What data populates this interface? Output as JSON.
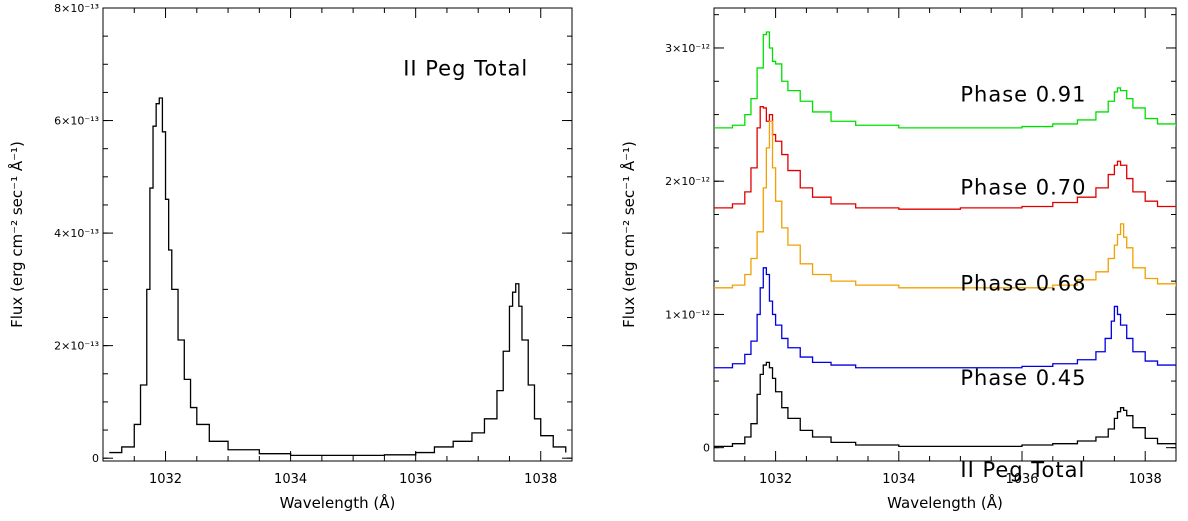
{
  "chart_data": [
    {
      "type": "line",
      "xlabel": "Wavelength (Å)",
      "ylabel": "Flux (erg cm⁻² sec⁻¹ Å⁻¹)",
      "xlim": [
        1031.0,
        1038.5
      ],
      "ylim": [
        -5e-15,
        8e-13
      ],
      "x_ticks": [
        {
          "value": 1032,
          "label": "1032"
        },
        {
          "value": 1034,
          "label": "1034"
        },
        {
          "value": 1036,
          "label": "1036"
        },
        {
          "value": 1038,
          "label": "1038"
        }
      ],
      "y_ticks": [
        {
          "value": 0,
          "label": "0"
        },
        {
          "value": 2e-13,
          "label": "2×10⁻¹³"
        },
        {
          "value": 4e-13,
          "label": "4×10⁻¹³"
        },
        {
          "value": 6e-13,
          "label": "6×10⁻¹³"
        },
        {
          "value": 8e-13,
          "label": "8×10⁻¹³"
        }
      ],
      "annotations": [
        {
          "text": "II Peg Total",
          "x": 1036.8,
          "y": 6.8e-13
        }
      ],
      "series": [
        {
          "color": "#000000",
          "x": [
            1031.1,
            1031.3,
            1031.5,
            1031.6,
            1031.7,
            1031.75,
            1031.8,
            1031.85,
            1031.9,
            1031.95,
            1032.0,
            1032.05,
            1032.1,
            1032.2,
            1032.3,
            1032.4,
            1032.5,
            1032.7,
            1033.0,
            1033.5,
            1034.0,
            1034.5,
            1035.0,
            1035.5,
            1036.0,
            1036.3,
            1036.6,
            1036.9,
            1037.1,
            1037.3,
            1037.4,
            1037.5,
            1037.55,
            1037.6,
            1037.65,
            1037.7,
            1037.8,
            1037.9,
            1038.0,
            1038.2,
            1038.4
          ],
          "y": [
            1e-14,
            2e-14,
            6e-14,
            1.3e-13,
            3e-13,
            4.8e-13,
            5.9e-13,
            6.3e-13,
            6.4e-13,
            5.8e-13,
            4.6e-13,
            3.7e-13,
            3e-13,
            2.1e-13,
            1.4e-13,
            9e-14,
            6e-14,
            3e-14,
            1.5e-14,
            8e-15,
            5e-15,
            5e-15,
            5e-15,
            6e-15,
            1e-14,
            2e-14,
            3e-14,
            4.5e-14,
            7e-14,
            1.2e-13,
            1.9e-13,
            2.7e-13,
            2.95e-13,
            3.1e-13,
            2.7e-13,
            2.1e-13,
            1.3e-13,
            7e-14,
            4e-14,
            2e-14,
            1e-14
          ]
        }
      ]
    },
    {
      "type": "line",
      "xlabel": "Wavelength (Å)",
      "ylabel": "Flux (erg cm⁻² sec⁻¹ Å⁻¹)",
      "xlim": [
        1031.0,
        1038.5
      ],
      "ylim": [
        -1e-13,
        3.3e-12
      ],
      "x_ticks": [
        {
          "value": 1032,
          "label": "1032"
        },
        {
          "value": 1034,
          "label": "1034"
        },
        {
          "value": 1036,
          "label": "1036"
        },
        {
          "value": 1038,
          "label": "1038"
        }
      ],
      "y_ticks": [
        {
          "value": 0,
          "label": "0"
        },
        {
          "value": 1e-12,
          "label": "1×10⁻¹²"
        },
        {
          "value": 2e-12,
          "label": "2×10⁻¹²"
        },
        {
          "value": 3e-12,
          "label": "3×10⁻¹²"
        }
      ],
      "annotations": [
        {
          "text": "Phase 0.91",
          "x": 1035.0,
          "y": 2.6e-12
        },
        {
          "text": "Phase 0.70",
          "x": 1035.0,
          "y": 1.9e-12
        },
        {
          "text": "Phase 0.68",
          "x": 1035.0,
          "y": 1.18e-12
        },
        {
          "text": "Phase 0.45",
          "x": 1035.0,
          "y": 4.7e-13
        },
        {
          "text": "II Peg Total",
          "x": 1035.0,
          "y": -2.2e-13
        }
      ],
      "series": [
        {
          "color": "#00e000",
          "x": [
            1031.0,
            1031.3,
            1031.5,
            1031.6,
            1031.7,
            1031.8,
            1031.85,
            1031.9,
            1031.95,
            1032.0,
            1032.1,
            1032.2,
            1032.4,
            1032.6,
            1032.9,
            1033.3,
            1034.0,
            1035.0,
            1036.0,
            1036.5,
            1036.9,
            1037.2,
            1037.4,
            1037.5,
            1037.55,
            1037.6,
            1037.7,
            1037.8,
            1038.0,
            1038.2,
            1038.5
          ],
          "y": [
            2.4e-12,
            2.42e-12,
            2.5e-12,
            2.62e-12,
            2.85e-12,
            3.1e-12,
            3.12e-12,
            3e-12,
            2.9e-12,
            2.88e-12,
            2.75e-12,
            2.68e-12,
            2.6e-12,
            2.52e-12,
            2.45e-12,
            2.42e-12,
            2.4e-12,
            2.4e-12,
            2.41e-12,
            2.43e-12,
            2.46e-12,
            2.52e-12,
            2.6e-12,
            2.67e-12,
            2.7e-12,
            2.68e-12,
            2.62e-12,
            2.55e-12,
            2.47e-12,
            2.43e-12,
            2.41e-12
          ]
        },
        {
          "color": "#e00000",
          "x": [
            1031.0,
            1031.3,
            1031.5,
            1031.6,
            1031.7,
            1031.75,
            1031.8,
            1031.85,
            1031.9,
            1031.95,
            1032.0,
            1032.1,
            1032.2,
            1032.4,
            1032.6,
            1032.9,
            1033.3,
            1034.0,
            1035.0,
            1036.0,
            1036.5,
            1036.9,
            1037.2,
            1037.4,
            1037.5,
            1037.55,
            1037.6,
            1037.7,
            1037.8,
            1038.0,
            1038.2,
            1038.5
          ],
          "y": [
            1.8e-12,
            1.83e-12,
            1.92e-12,
            2.1e-12,
            2.4e-12,
            2.56e-12,
            2.55e-12,
            2.45e-12,
            2.5e-12,
            2.35e-12,
            2.3e-12,
            2.2e-12,
            2.08e-12,
            1.95e-12,
            1.88e-12,
            1.83e-12,
            1.8e-12,
            1.79e-12,
            1.8e-12,
            1.81e-12,
            1.84e-12,
            1.88e-12,
            1.95e-12,
            2.05e-12,
            2.12e-12,
            2.15e-12,
            2.12e-12,
            2.02e-12,
            1.92e-12,
            1.85e-12,
            1.81e-12,
            1.8e-12
          ]
        },
        {
          "color": "#f0a000",
          "x": [
            1031.0,
            1031.3,
            1031.5,
            1031.6,
            1031.7,
            1031.8,
            1031.85,
            1031.9,
            1031.95,
            1032.0,
            1032.1,
            1032.2,
            1032.4,
            1032.6,
            1032.9,
            1033.3,
            1034.0,
            1035.0,
            1036.0,
            1036.5,
            1036.9,
            1037.2,
            1037.4,
            1037.5,
            1037.55,
            1037.6,
            1037.65,
            1037.7,
            1037.8,
            1038.0,
            1038.2,
            1038.5
          ],
          "y": [
            1.2e-12,
            1.22e-12,
            1.3e-12,
            1.42e-12,
            1.62e-12,
            1.95e-12,
            2.25e-12,
            2.45e-12,
            2.1e-12,
            1.85e-12,
            1.65e-12,
            1.52e-12,
            1.38e-12,
            1.3e-12,
            1.25e-12,
            1.22e-12,
            1.2e-12,
            1.2e-12,
            1.2e-12,
            1.22e-12,
            1.26e-12,
            1.32e-12,
            1.42e-12,
            1.52e-12,
            1.6e-12,
            1.68e-12,
            1.58e-12,
            1.5e-12,
            1.35e-12,
            1.27e-12,
            1.23e-12,
            1.21e-12
          ]
        },
        {
          "color": "#0000e0",
          "x": [
            1031.0,
            1031.3,
            1031.5,
            1031.6,
            1031.7,
            1031.75,
            1031.8,
            1031.85,
            1031.9,
            1031.95,
            1032.0,
            1032.1,
            1032.2,
            1032.4,
            1032.6,
            1032.9,
            1033.3,
            1034.0,
            1035.0,
            1036.0,
            1036.5,
            1036.9,
            1037.2,
            1037.35,
            1037.45,
            1037.5,
            1037.55,
            1037.6,
            1037.7,
            1037.8,
            1038.0,
            1038.2,
            1038.5
          ],
          "y": [
            6e-13,
            6.3e-13,
            7e-13,
            8e-13,
            1e-12,
            1.2e-12,
            1.35e-12,
            1.3e-12,
            1.1e-12,
            1e-12,
            9.2e-13,
            8.2e-13,
            7.5e-13,
            6.8e-13,
            6.4e-13,
            6.2e-13,
            6e-13,
            6e-13,
            6e-13,
            6.1e-13,
            6.3e-13,
            6.6e-13,
            7.2e-13,
            8.2e-13,
            9.5e-13,
            1.06e-12,
            1e-12,
            9.2e-13,
            8.2e-13,
            7.2e-13,
            6.5e-13,
            6.2e-13,
            6.1e-13
          ]
        },
        {
          "color": "#000000",
          "x": [
            1031.0,
            1031.3,
            1031.5,
            1031.6,
            1031.7,
            1031.75,
            1031.8,
            1031.85,
            1031.9,
            1031.95,
            1032.0,
            1032.1,
            1032.2,
            1032.4,
            1032.6,
            1032.9,
            1033.3,
            1034.0,
            1035.0,
            1036.0,
            1036.5,
            1036.9,
            1037.2,
            1037.4,
            1037.5,
            1037.55,
            1037.6,
            1037.65,
            1037.7,
            1037.8,
            1038.0,
            1038.2,
            1038.5
          ],
          "y": [
            1e-14,
            3e-14,
            8e-14,
            1.8e-13,
            4e-13,
            5.5e-13,
            6.2e-13,
            6.4e-13,
            6e-13,
            5.2e-13,
            4.2e-13,
            3e-13,
            2.2e-13,
            1.3e-13,
            8e-14,
            4e-14,
            2e-14,
            1e-14,
            1e-14,
            2e-14,
            3e-14,
            5e-14,
            8e-14,
            1.4e-13,
            2.2e-13,
            2.7e-13,
            3e-13,
            2.8e-13,
            2.4e-13,
            1.5e-13,
            7e-14,
            3e-14,
            1e-14
          ]
        }
      ]
    }
  ]
}
